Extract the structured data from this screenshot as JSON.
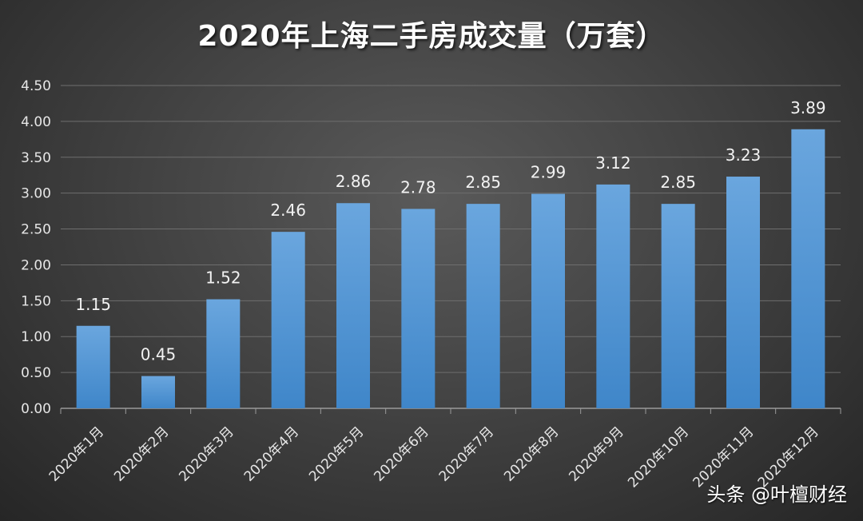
{
  "chart_data": {
    "type": "bar",
    "title": "2020年上海二手房成交量（万套）",
    "categories": [
      "2020年1月",
      "2020年2月",
      "2020年3月",
      "2020年4月",
      "2020年5月",
      "2020年6月",
      "2020年7月",
      "2020年8月",
      "2020年9月",
      "2020年10月",
      "2020年11月",
      "2020年12月"
    ],
    "values": [
      1.15,
      0.45,
      1.52,
      2.46,
      2.86,
      2.78,
      2.85,
      2.99,
      3.12,
      2.85,
      3.23,
      3.89
    ],
    "value_labels": [
      "1.15",
      "0.45",
      "1.52",
      "2.46",
      "2.86",
      "2.78",
      "2.85",
      "2.99",
      "3.12",
      "2.85",
      "3.23",
      "3.89"
    ],
    "y_ticks": [
      "0.00",
      "0.50",
      "1.00",
      "1.50",
      "2.00",
      "2.50",
      "3.00",
      "3.50",
      "4.00",
      "4.50"
    ],
    "ylim": [
      0,
      4.5
    ],
    "xlabel": "",
    "ylabel": "",
    "grid": true,
    "legend": "none",
    "bar_color": "#5b9bd5",
    "background": "#434343"
  },
  "watermark": "头条 @叶檀财经"
}
